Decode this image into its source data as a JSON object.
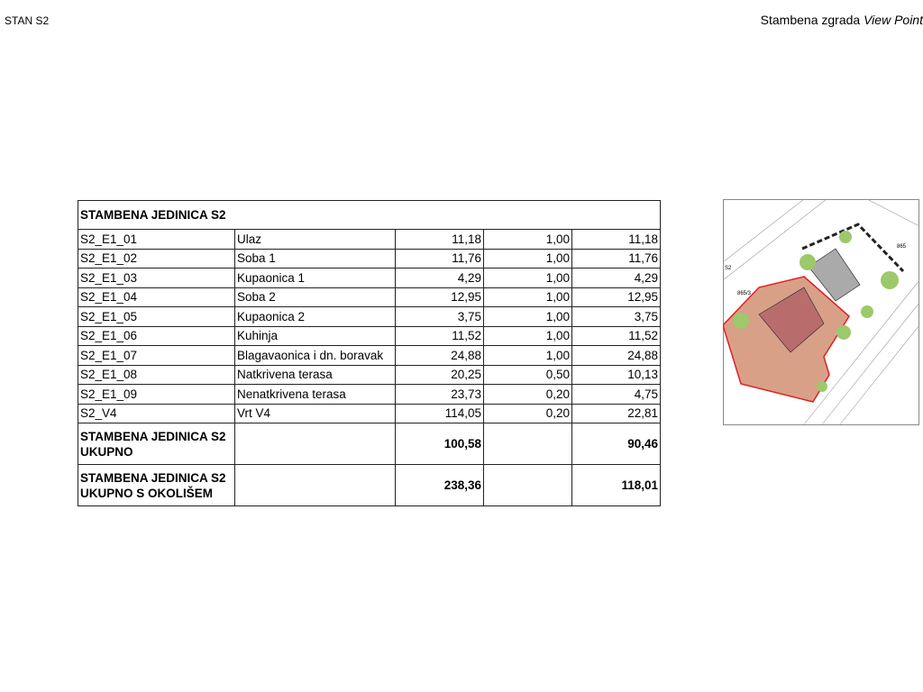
{
  "header": {
    "left": "STAN S2",
    "right_prefix": "Stambena zgrada",
    "right_italic": "View Point"
  },
  "table": {
    "title": "STAMBENA JEDINICA S2",
    "rows": [
      [
        "S2_E1_01",
        "Ulaz",
        "11,18",
        "1,00",
        "11,18"
      ],
      [
        "S2_E1_02",
        "Soba 1",
        "11,76",
        "1,00",
        "11,76"
      ],
      [
        "S2_E1_03",
        "Kupaonica 1",
        "4,29",
        "1,00",
        "4,29"
      ],
      [
        "S2_E1_04",
        "Soba 2",
        "12,95",
        "1,00",
        "12,95"
      ],
      [
        "S2_E1_05",
        "Kupaonica 2",
        "3,75",
        "1,00",
        "3,75"
      ],
      [
        "S2_E1_06",
        "Kuhinja",
        "11,52",
        "1,00",
        "11,52"
      ],
      [
        "S2_E1_07",
        "Blagavaonica i dn. boravak",
        "24,88",
        "1,00",
        "24,88"
      ],
      [
        "S2_E1_08",
        "Natkrivena terasa",
        "20,25",
        "0,50",
        "10,13"
      ],
      [
        "S2_E1_09",
        "Nenatkrivena terasa",
        "23,73",
        "0,20",
        "4,75"
      ],
      [
        "S2_V4",
        "Vrt V4",
        "114,05",
        "0,20",
        "22,81"
      ]
    ],
    "totals": [
      {
        "label": "STAMBENA JEDINICA S2 UKUPNO",
        "area": "100,58",
        "weighted": "90,46"
      },
      {
        "label": "STAMBENA JEDINICA S2 UKUPNO S OKOLIŠEM",
        "area": "238,36",
        "weighted": "118,01"
      }
    ]
  },
  "site_plan": {
    "labels": [
      "865",
      "865/3",
      "S2"
    ]
  }
}
